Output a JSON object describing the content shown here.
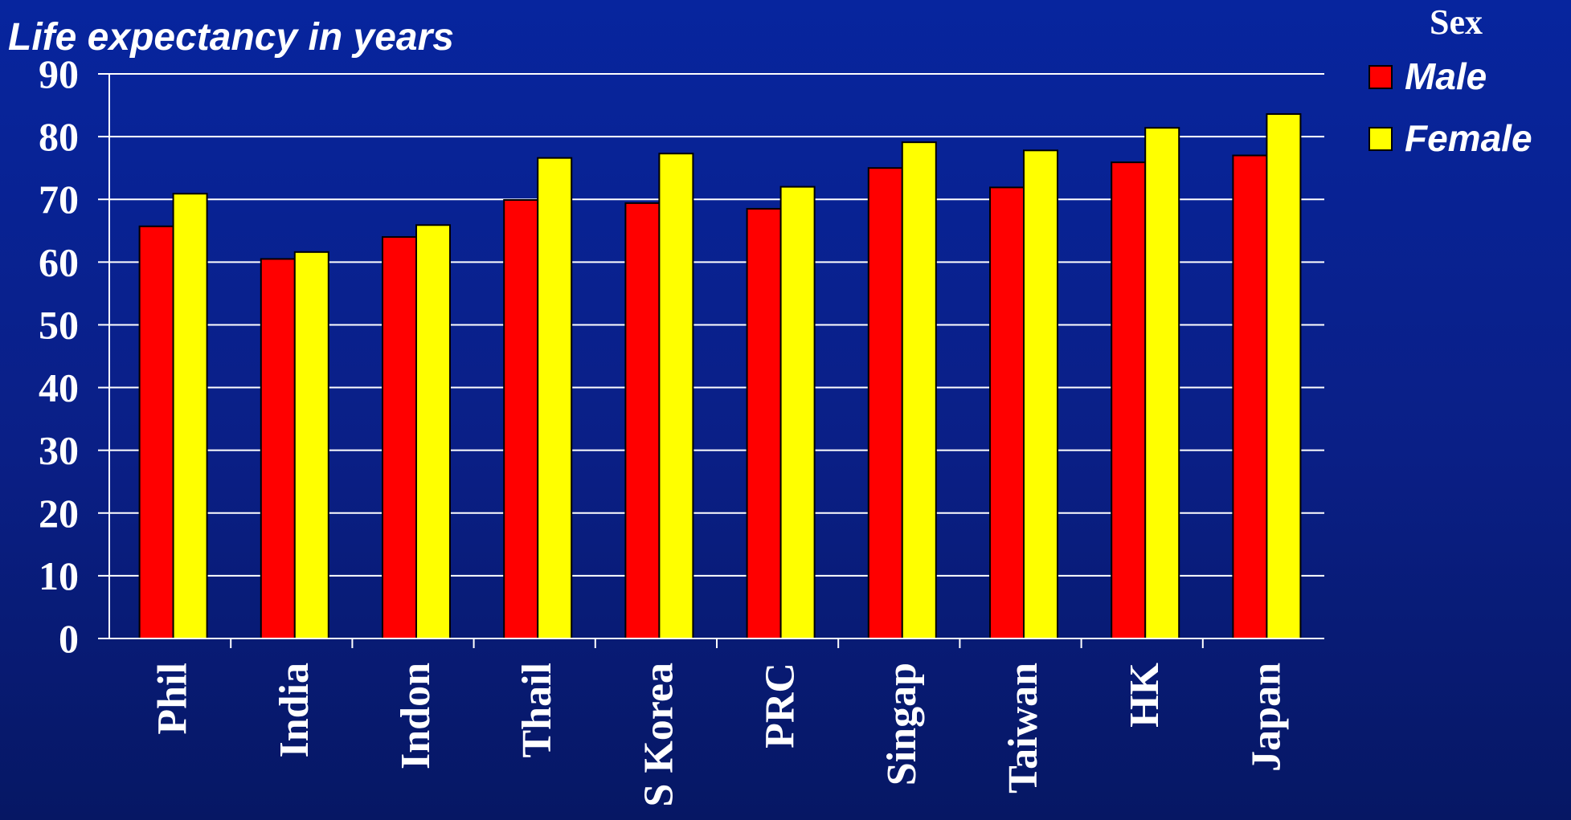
{
  "chart_data": {
    "type": "bar",
    "title": "Life expectancy in years",
    "categories": [
      "Phil",
      "India",
      "Indon",
      "Thail",
      "S Korea",
      "PRC",
      "Singap",
      "Taiwan",
      "HK",
      "Japan"
    ],
    "series": [
      {
        "name": "Male",
        "color": "#ff0000",
        "values": [
          65.7,
          60.5,
          64.0,
          69.9,
          69.4,
          68.5,
          75.0,
          71.9,
          75.9,
          77.0
        ]
      },
      {
        "name": "Female",
        "color": "#ffff00",
        "values": [
          70.9,
          61.6,
          65.9,
          76.6,
          77.3,
          72.0,
          79.1,
          77.8,
          81.4,
          83.6
        ]
      }
    ],
    "yticks": [
      "0",
      "10",
      "20",
      "30",
      "40",
      "50",
      "60",
      "70",
      "80",
      "90"
    ],
    "ylim": [
      0,
      90
    ],
    "grid": true,
    "legend": {
      "title": "Sex",
      "position": "top-right"
    }
  }
}
